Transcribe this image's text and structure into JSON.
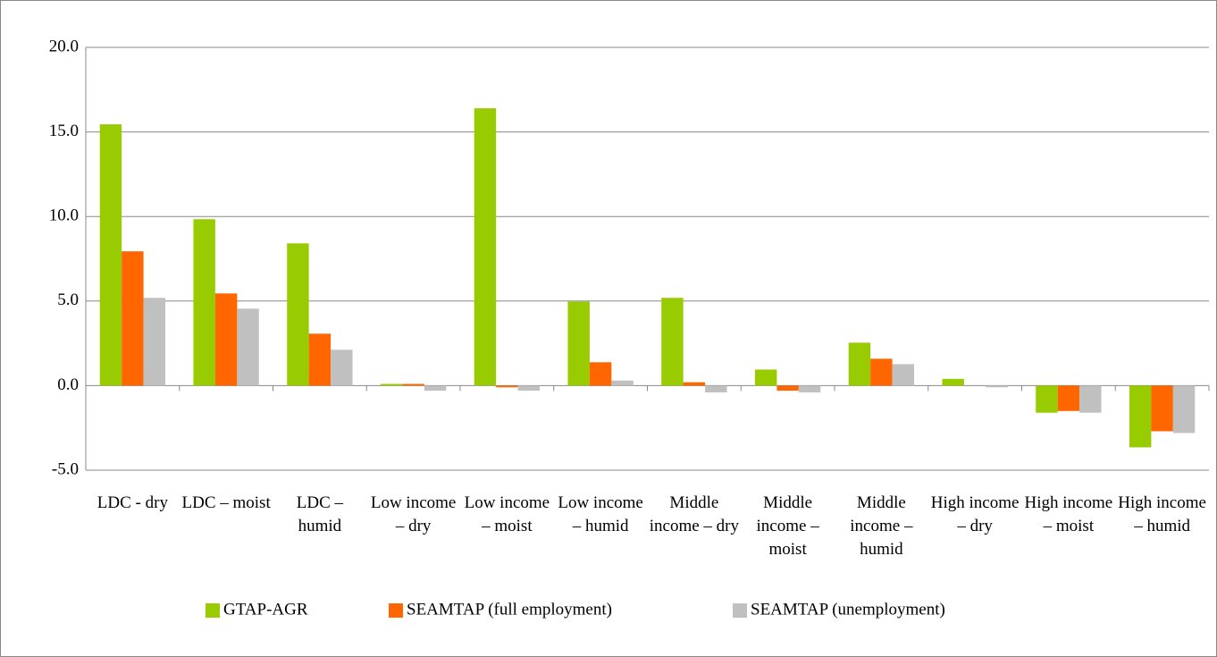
{
  "chart_data": {
    "type": "bar",
    "categories": [
      "LDC - dry",
      "LDC – moist",
      "LDC – humid",
      "Low income – dry",
      "Low income – moist",
      "Low income – humid",
      "Middle income – dry",
      "Middle income – moist",
      "Middle income – humid",
      "High income – dry",
      "High income – moist",
      "High income – humid"
    ],
    "series": [
      {
        "name": "GTAP-AGR",
        "color": "#99cc00",
        "values": [
          15.45,
          9.84,
          8.41,
          0.1,
          16.4,
          4.97,
          5.19,
          0.95,
          2.54,
          0.4,
          -1.6,
          -3.65
        ]
      },
      {
        "name": "SEAMTAP (full employment)",
        "color": "#ff6600",
        "values": [
          7.94,
          5.45,
          3.07,
          0.1,
          -0.1,
          1.38,
          0.2,
          -0.3,
          1.59,
          0.0,
          -1.5,
          -2.7
        ]
      },
      {
        "name": "SEAMTAP (unemployment)",
        "color": "#c0c0c0",
        "values": [
          5.19,
          4.55,
          2.12,
          -0.3,
          -0.3,
          0.3,
          -0.4,
          -0.4,
          1.27,
          -0.1,
          -1.6,
          -2.8
        ]
      }
    ],
    "ylim": [
      -5,
      20
    ],
    "yticks": [
      {
        "value": -5,
        "label": "-5.0"
      },
      {
        "value": 0,
        "label": "0.0"
      },
      {
        "value": 5,
        "label": "5.0"
      },
      {
        "value": 10,
        "label": "10.0"
      },
      {
        "value": 15,
        "label": "15.0"
      },
      {
        "value": 20,
        "label": "20.0"
      }
    ],
    "grid": true,
    "legend": "bottom"
  }
}
